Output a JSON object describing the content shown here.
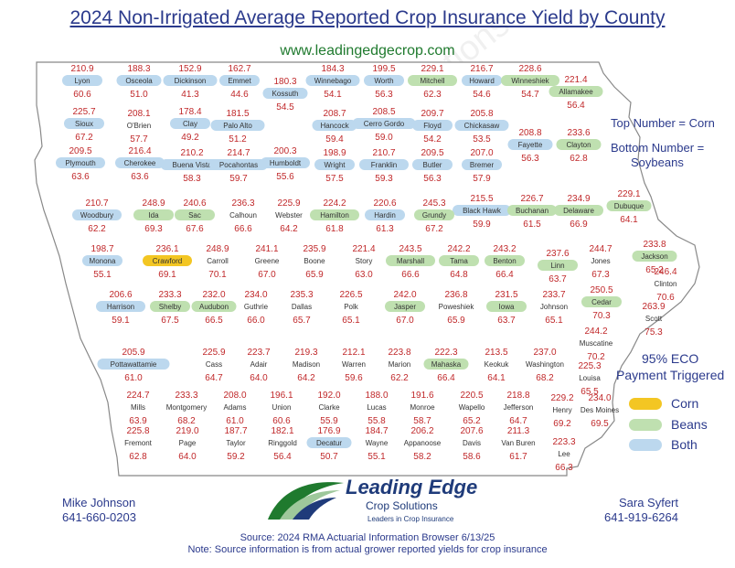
{
  "title": "2024 Non-Irrigated Average Reported Crop Insurance Yield by County",
  "website": "www.leadingedgecrop.com",
  "legend": {
    "top_number": "Top Number = Corn",
    "bottom_number": "Bottom Number =",
    "bottom_number2": "Soybeans",
    "eco_line1": "95% ECO",
    "eco_line2": "Payment Triggered",
    "corn_label": "Corn",
    "beans_label": "Beans",
    "both_label": "Both"
  },
  "colors": {
    "corn": "#f3c623",
    "beans": "#bfe0b0",
    "both": "#bcd8ee",
    "number": "#c0282a",
    "title": "#2b3a8c"
  },
  "contacts": {
    "left_name": "Mike Johnson",
    "left_phone": "641-660-0203",
    "right_name": "Sara Syfert",
    "right_phone": "641-919-6264"
  },
  "logo": {
    "name": "Leading Edge",
    "sub": "Crop Solutions",
    "tagline": "Leaders in Crop Insurance"
  },
  "footer": {
    "source": "Source: 2024 RMA Actuarial Information Browser 6/13/25",
    "note": "Note: Source information is from actual grower reported yields for crop insurance"
  },
  "watermark": "Leading Edge Crop Solutions",
  "counties": [
    {
      "name": "Lyon",
      "corn": "210.9",
      "soy": "60.6",
      "eco": "both"
    },
    {
      "name": "Osceola",
      "corn": "188.3",
      "soy": "51.0",
      "eco": "both"
    },
    {
      "name": "Dickinson",
      "corn": "152.9",
      "soy": "41.3",
      "eco": "both"
    },
    {
      "name": "Emmet",
      "corn": "162.7",
      "soy": "44.6",
      "eco": "both"
    },
    {
      "name": "Kossuth",
      "corn": "180.3",
      "soy": "54.5",
      "eco": "both"
    },
    {
      "name": "Winnebago",
      "corn": "184.3",
      "soy": "54.1",
      "eco": "both"
    },
    {
      "name": "Worth",
      "corn": "199.5",
      "soy": "56.3",
      "eco": "both"
    },
    {
      "name": "Mitchell",
      "corn": "229.1",
      "soy": "62.3",
      "eco": "beans"
    },
    {
      "name": "Howard",
      "corn": "216.7",
      "soy": "54.6",
      "eco": "both"
    },
    {
      "name": "Winneshiek",
      "corn": "228.6",
      "soy": "54.7",
      "eco": "beans"
    },
    {
      "name": "Allamakee",
      "corn": "221.4",
      "soy": "56.4",
      "eco": "beans"
    },
    {
      "name": "Sioux",
      "corn": "225.7",
      "soy": "67.2",
      "eco": "both"
    },
    {
      "name": "O'Brien",
      "corn": "208.1",
      "soy": "57.7",
      "eco": "none"
    },
    {
      "name": "Clay",
      "corn": "178.4",
      "soy": "49.2",
      "eco": "both"
    },
    {
      "name": "Palo Alto",
      "corn": "181.5",
      "soy": "51.2",
      "eco": "both"
    },
    {
      "name": "Hancock",
      "corn": "208.7",
      "soy": "59.4",
      "eco": "both"
    },
    {
      "name": "Cerro Gordo",
      "corn": "208.5",
      "soy": "59.0",
      "eco": "both"
    },
    {
      "name": "Floyd",
      "corn": "209.7",
      "soy": "54.2",
      "eco": "both"
    },
    {
      "name": "Chickasaw",
      "corn": "205.8",
      "soy": "53.5",
      "eco": "both"
    },
    {
      "name": "Fayette",
      "corn": "208.8",
      "soy": "56.3",
      "eco": "both"
    },
    {
      "name": "Clayton",
      "corn": "233.6",
      "soy": "62.8",
      "eco": "beans"
    },
    {
      "name": "Plymouth",
      "corn": "209.5",
      "soy": "63.6",
      "eco": "both"
    },
    {
      "name": "Cherokee",
      "corn": "216.4",
      "soy": "63.6",
      "eco": "both"
    },
    {
      "name": "Buena Vista",
      "corn": "210.2",
      "soy": "58.3",
      "eco": "both"
    },
    {
      "name": "Pocahontas",
      "corn": "214.7",
      "soy": "59.7",
      "eco": "both"
    },
    {
      "name": "Humboldt",
      "corn": "200.3",
      "soy": "55.6",
      "eco": "both"
    },
    {
      "name": "Wright",
      "corn": "198.9",
      "soy": "57.5",
      "eco": "both"
    },
    {
      "name": "Franklin",
      "corn": "210.7",
      "soy": "59.3",
      "eco": "both"
    },
    {
      "name": "Butler",
      "corn": "209.5",
      "soy": "56.3",
      "eco": "both"
    },
    {
      "name": "Bremer",
      "corn": "207.0",
      "soy": "57.9",
      "eco": "both"
    },
    {
      "name": "Black Hawk",
      "corn": "215.5",
      "soy": "59.9",
      "eco": "both"
    },
    {
      "name": "Buchanan",
      "corn": "226.7",
      "soy": "61.5",
      "eco": "beans"
    },
    {
      "name": "Delaware",
      "corn": "234.9",
      "soy": "66.9",
      "eco": "beans"
    },
    {
      "name": "Dubuque",
      "corn": "229.1",
      "soy": "64.1",
      "eco": "beans"
    },
    {
      "name": "Woodbury",
      "corn": "210.7",
      "soy": "62.2",
      "eco": "both"
    },
    {
      "name": "Ida",
      "corn": "248.9",
      "soy": "69.3",
      "eco": "beans"
    },
    {
      "name": "Sac",
      "corn": "240.6",
      "soy": "67.6",
      "eco": "beans"
    },
    {
      "name": "Calhoun",
      "corn": "236.3",
      "soy": "66.6",
      "eco": "none"
    },
    {
      "name": "Webster",
      "corn": "225.9",
      "soy": "64.2",
      "eco": "none"
    },
    {
      "name": "Hamilton",
      "corn": "224.2",
      "soy": "61.8",
      "eco": "beans"
    },
    {
      "name": "Hardin",
      "corn": "220.6",
      "soy": "61.3",
      "eco": "both"
    },
    {
      "name": "Grundy",
      "corn": "245.3",
      "soy": "67.2",
      "eco": "beans"
    },
    {
      "name": "Monona",
      "corn": "198.7",
      "soy": "55.1",
      "eco": "both"
    },
    {
      "name": "Crawford",
      "corn": "236.1",
      "soy": "69.1",
      "eco": "corn"
    },
    {
      "name": "Carroll",
      "corn": "248.9",
      "soy": "70.1",
      "eco": "none"
    },
    {
      "name": "Greene",
      "corn": "241.1",
      "soy": "67.0",
      "eco": "none"
    },
    {
      "name": "Boone",
      "corn": "235.9",
      "soy": "65.9",
      "eco": "none"
    },
    {
      "name": "Story",
      "corn": "221.4",
      "soy": "63.0",
      "eco": "none"
    },
    {
      "name": "Marshall",
      "corn": "243.5",
      "soy": "66.6",
      "eco": "beans"
    },
    {
      "name": "Tama",
      "corn": "242.2",
      "soy": "64.8",
      "eco": "beans"
    },
    {
      "name": "Benton",
      "corn": "243.2",
      "soy": "66.4",
      "eco": "beans"
    },
    {
      "name": "Linn",
      "corn": "237.6",
      "soy": "63.7",
      "eco": "beans"
    },
    {
      "name": "Jones",
      "corn": "244.7",
      "soy": "67.3",
      "eco": "none"
    },
    {
      "name": "Jackson",
      "corn": "233.8",
      "soy": "65.2",
      "eco": "beans"
    },
    {
      "name": "Clinton",
      "corn": "246.4",
      "soy": "70.6",
      "eco": "none"
    },
    {
      "name": "Harrison",
      "corn": "206.6",
      "soy": "59.1",
      "eco": "both"
    },
    {
      "name": "Shelby",
      "corn": "233.3",
      "soy": "67.5",
      "eco": "beans"
    },
    {
      "name": "Audubon",
      "corn": "232.0",
      "soy": "66.5",
      "eco": "beans"
    },
    {
      "name": "Guthrie",
      "corn": "234.0",
      "soy": "66.0",
      "eco": "none"
    },
    {
      "name": "Dallas",
      "corn": "235.3",
      "soy": "65.7",
      "eco": "none"
    },
    {
      "name": "Polk",
      "corn": "226.5",
      "soy": "65.1",
      "eco": "none"
    },
    {
      "name": "Jasper",
      "corn": "242.0",
      "soy": "67.0",
      "eco": "beans"
    },
    {
      "name": "Poweshiek",
      "corn": "236.8",
      "soy": "65.9",
      "eco": "none"
    },
    {
      "name": "Iowa",
      "corn": "231.5",
      "soy": "63.7",
      "eco": "beans"
    },
    {
      "name": "Johnson",
      "corn": "233.7",
      "soy": "65.1",
      "eco": "none"
    },
    {
      "name": "Cedar",
      "corn": "250.5",
      "soy": "70.3",
      "eco": "beans"
    },
    {
      "name": "Scott",
      "corn": "263.9",
      "soy": "75.3",
      "eco": "none"
    },
    {
      "name": "Muscatine",
      "corn": "244.2",
      "soy": "70.2",
      "eco": "none"
    },
    {
      "name": "Pottawattamie",
      "corn": "205.9",
      "soy": "61.0",
      "eco": "both"
    },
    {
      "name": "Cass",
      "corn": "225.9",
      "soy": "64.7",
      "eco": "none"
    },
    {
      "name": "Adair",
      "corn": "223.7",
      "soy": "64.0",
      "eco": "none"
    },
    {
      "name": "Madison",
      "corn": "219.3",
      "soy": "64.2",
      "eco": "none"
    },
    {
      "name": "Warren",
      "corn": "212.1",
      "soy": "59.6",
      "eco": "none"
    },
    {
      "name": "Marion",
      "corn": "223.8",
      "soy": "62.2",
      "eco": "none"
    },
    {
      "name": "Mahaska",
      "corn": "222.3",
      "soy": "66.4",
      "eco": "beans"
    },
    {
      "name": "Keokuk",
      "corn": "213.5",
      "soy": "64.1",
      "eco": "none"
    },
    {
      "name": "Washington",
      "corn": "237.0",
      "soy": "68.2",
      "eco": "none"
    },
    {
      "name": "Louisa",
      "corn": "225.3",
      "soy": "65.5",
      "eco": "none"
    },
    {
      "name": "Mills",
      "corn": "224.7",
      "soy": "63.9",
      "eco": "none"
    },
    {
      "name": "Montgomery",
      "corn": "233.3",
      "soy": "68.2",
      "eco": "none"
    },
    {
      "name": "Adams",
      "corn": "208.0",
      "soy": "61.0",
      "eco": "none"
    },
    {
      "name": "Union",
      "corn": "196.1",
      "soy": "60.6",
      "eco": "none"
    },
    {
      "name": "Clarke",
      "corn": "192.0",
      "soy": "55.9",
      "eco": "none"
    },
    {
      "name": "Lucas",
      "corn": "188.0",
      "soy": "55.8",
      "eco": "none"
    },
    {
      "name": "Monroe",
      "corn": "191.6",
      "soy": "58.7",
      "eco": "none"
    },
    {
      "name": "Wapello",
      "corn": "220.5",
      "soy": "65.2",
      "eco": "none"
    },
    {
      "name": "Jefferson",
      "corn": "218.8",
      "soy": "64.7",
      "eco": "none"
    },
    {
      "name": "Henry",
      "corn": "229.2",
      "soy": "69.2",
      "eco": "none"
    },
    {
      "name": "Des Moines",
      "corn": "234.0",
      "soy": "69.5",
      "eco": "none"
    },
    {
      "name": "Fremont",
      "corn": "225.8",
      "soy": "62.8",
      "eco": "none"
    },
    {
      "name": "Page",
      "corn": "219.0",
      "soy": "64.0",
      "eco": "none"
    },
    {
      "name": "Taylor",
      "corn": "187.7",
      "soy": "59.2",
      "eco": "none"
    },
    {
      "name": "Ringgold",
      "corn": "182.1",
      "soy": "56.4",
      "eco": "none"
    },
    {
      "name": "Decatur",
      "corn": "176.9",
      "soy": "50.7",
      "eco": "both"
    },
    {
      "name": "Wayne",
      "corn": "184.7",
      "soy": "55.1",
      "eco": "none"
    },
    {
      "name": "Appanoose",
      "corn": "206.2",
      "soy": "58.2",
      "eco": "none"
    },
    {
      "name": "Davis",
      "corn": "207.6",
      "soy": "58.6",
      "eco": "none"
    },
    {
      "name": "Van Buren",
      "corn": "211.3",
      "soy": "61.7",
      "eco": "none"
    },
    {
      "name": "Lee",
      "corn": "223.3",
      "soy": "66.3",
      "eco": "none"
    }
  ]
}
